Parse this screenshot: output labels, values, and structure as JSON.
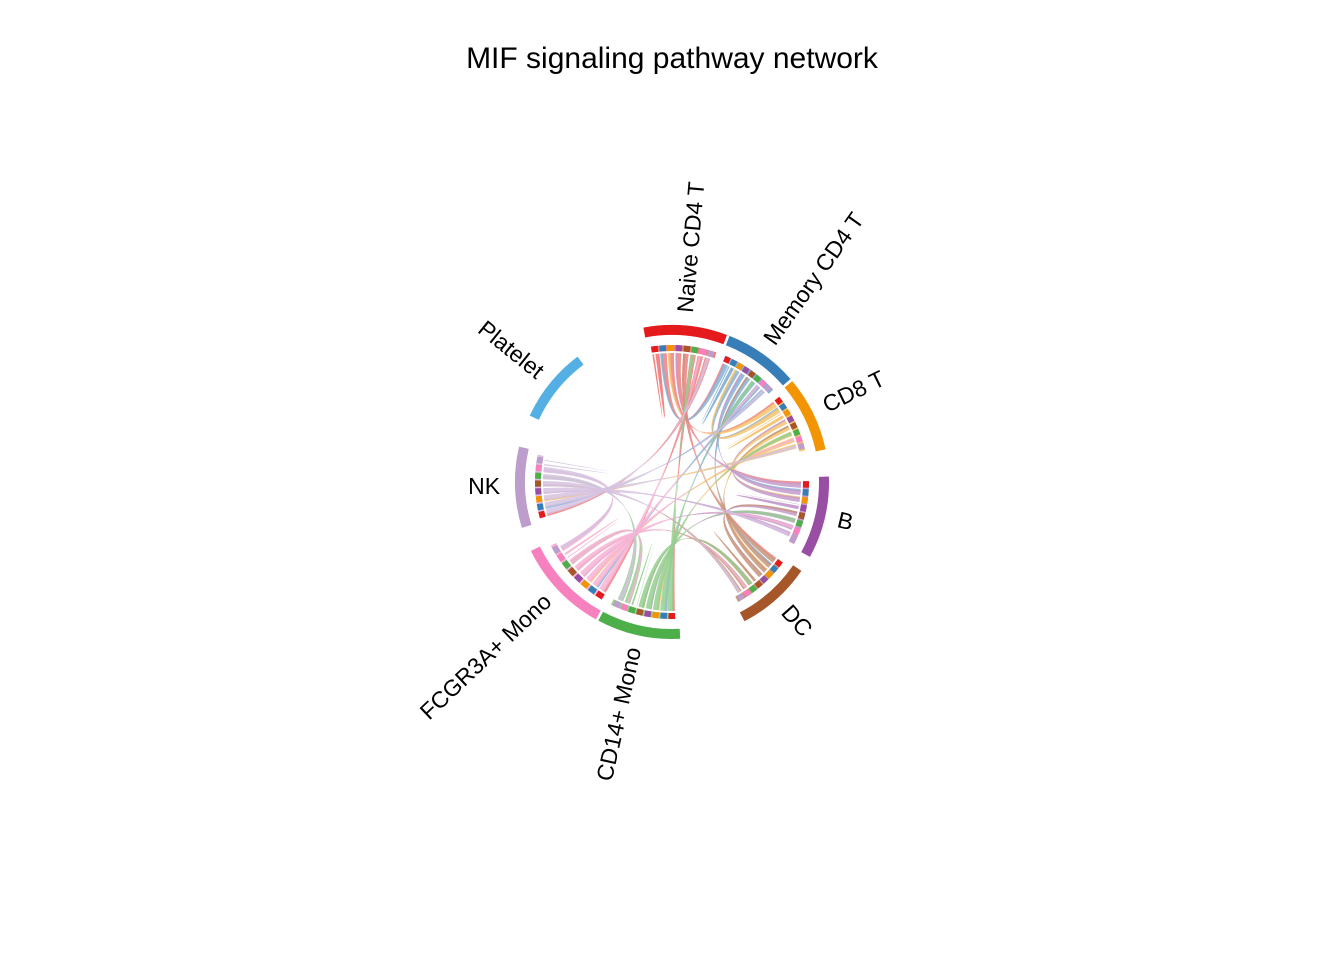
{
  "title": "MIF signaling pathway network",
  "sectors": [
    {
      "name": "Naive CD4 T",
      "color": "#E41A1C",
      "chordColor": "#F08080"
    },
    {
      "name": "Memory CD4 T",
      "color": "#377EB8",
      "chordColor": "#86B0D6"
    },
    {
      "name": "CD8 T",
      "color": "#F29403",
      "chordColor": "#F6C36E"
    },
    {
      "name": "B",
      "color": "#984EA3",
      "chordColor": "#C49BCB"
    },
    {
      "name": "DC",
      "color": "#A65628",
      "chordColor": "#C8957A"
    },
    {
      "name": "CD14+ Mono",
      "color": "#4DAF4A",
      "chordColor": "#94CF8F"
    },
    {
      "name": "FCGR3A+ Mono",
      "color": "#F781BF",
      "chordColor": "#F7B3D5"
    },
    {
      "name": "NK",
      "color": "#BC9DCC",
      "chordColor": "#D6C2E0"
    },
    {
      "name": "Platelet",
      "color": "#54B0E4",
      "chordColor": "#9FD0EE"
    }
  ]
}
